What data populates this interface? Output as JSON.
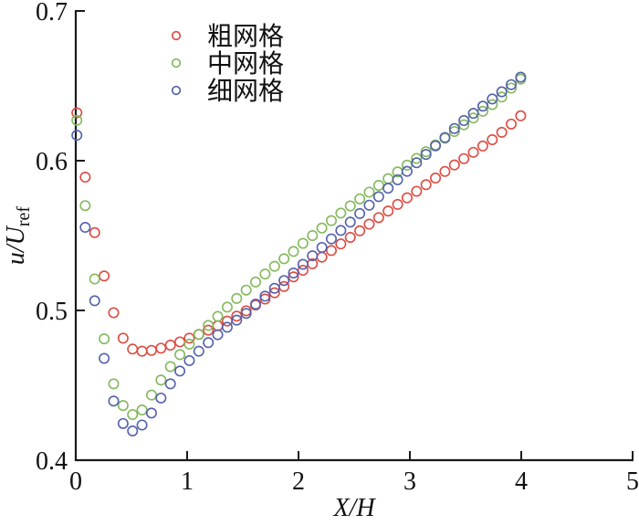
{
  "figure": {
    "background": "#ffffff",
    "axis_color": "#1a1a1a"
  },
  "chart_data": {
    "type": "scatter",
    "title": "",
    "xlabel": "X/H",
    "ylabel": "u/U",
    "ylabel_sub": "ref",
    "xlim": [
      0,
      5
    ],
    "ylim": [
      0.4,
      0.7
    ],
    "xticks": [
      0,
      1,
      2,
      3,
      4,
      5
    ],
    "xtick_labels": [
      "0",
      "1",
      "2",
      "3",
      "4",
      "5"
    ],
    "yticks": [
      0.4,
      0.5,
      0.6,
      0.7
    ],
    "ytick_labels": [
      "0.4",
      "0.5",
      "0.6",
      "0.7"
    ],
    "grid": false,
    "frame": "left-bottom-only",
    "tick_direction": "in",
    "legend_position": "top-left-inside",
    "marker": "open-circle",
    "x": [
      0.01,
      0.085,
      0.17,
      0.255,
      0.34,
      0.425,
      0.51,
      0.595,
      0.68,
      0.765,
      0.85,
      0.935,
      1.02,
      1.105,
      1.19,
      1.275,
      1.36,
      1.445,
      1.53,
      1.615,
      1.7,
      1.785,
      1.87,
      1.955,
      2.04,
      2.125,
      2.21,
      2.295,
      2.38,
      2.465,
      2.55,
      2.635,
      2.72,
      2.805,
      2.89,
      2.975,
      3.06,
      3.145,
      3.23,
      3.315,
      3.4,
      3.485,
      3.57,
      3.655,
      3.74,
      3.825,
      3.91,
      3.995
    ],
    "series": [
      {
        "name": "粗网格",
        "color": "#dd4a41",
        "values": [
          0.632,
          0.589,
          0.552,
          0.523,
          0.4985,
          0.4815,
          0.4742,
          0.4728,
          0.4733,
          0.4748,
          0.4768,
          0.479,
          0.4815,
          0.484,
          0.4868,
          0.4898,
          0.4929,
          0.4962,
          0.4998,
          0.5036,
          0.5076,
          0.5118,
          0.516,
          0.5224,
          0.5268,
          0.5312,
          0.5356,
          0.54,
          0.5444,
          0.5488,
          0.5532,
          0.5576,
          0.562,
          0.5664,
          0.5708,
          0.5752,
          0.5796,
          0.584,
          0.5884,
          0.5928,
          0.5972,
          0.6014,
          0.6056,
          0.6098,
          0.614,
          0.619,
          0.6245,
          0.63
        ]
      },
      {
        "name": "中网格",
        "color": "#83b85c",
        "values": [
          0.627,
          0.57,
          0.521,
          0.481,
          0.451,
          0.4365,
          0.4305,
          0.4335,
          0.4435,
          0.4535,
          0.4625,
          0.4705,
          0.4775,
          0.484,
          0.49,
          0.496,
          0.5022,
          0.508,
          0.5136,
          0.519,
          0.5243,
          0.5295,
          0.5345,
          0.5394,
          0.5448,
          0.55,
          0.555,
          0.56,
          0.565,
          0.5698,
          0.5745,
          0.579,
          0.5835,
          0.588,
          0.5925,
          0.597,
          0.6015,
          0.606,
          0.6105,
          0.615,
          0.6195,
          0.624,
          0.6285,
          0.633,
          0.6375,
          0.6425,
          0.6485,
          0.6545
        ]
      },
      {
        "name": "细网格",
        "color": "#5361ac",
        "values": [
          0.617,
          0.5555,
          0.5065,
          0.468,
          0.4395,
          0.4245,
          0.4195,
          0.4235,
          0.4315,
          0.4415,
          0.451,
          0.4595,
          0.4665,
          0.4728,
          0.4785,
          0.4838,
          0.4888,
          0.4935,
          0.498,
          0.5042,
          0.5095,
          0.5148,
          0.52,
          0.525,
          0.5308,
          0.5365,
          0.5421,
          0.5478,
          0.5534,
          0.559,
          0.5647,
          0.5703,
          0.576,
          0.5816,
          0.5873,
          0.5929,
          0.5986,
          0.6042,
          0.6099,
          0.6155,
          0.6215,
          0.6268,
          0.6316,
          0.6364,
          0.6412,
          0.646,
          0.6508,
          0.6558
        ]
      }
    ]
  }
}
